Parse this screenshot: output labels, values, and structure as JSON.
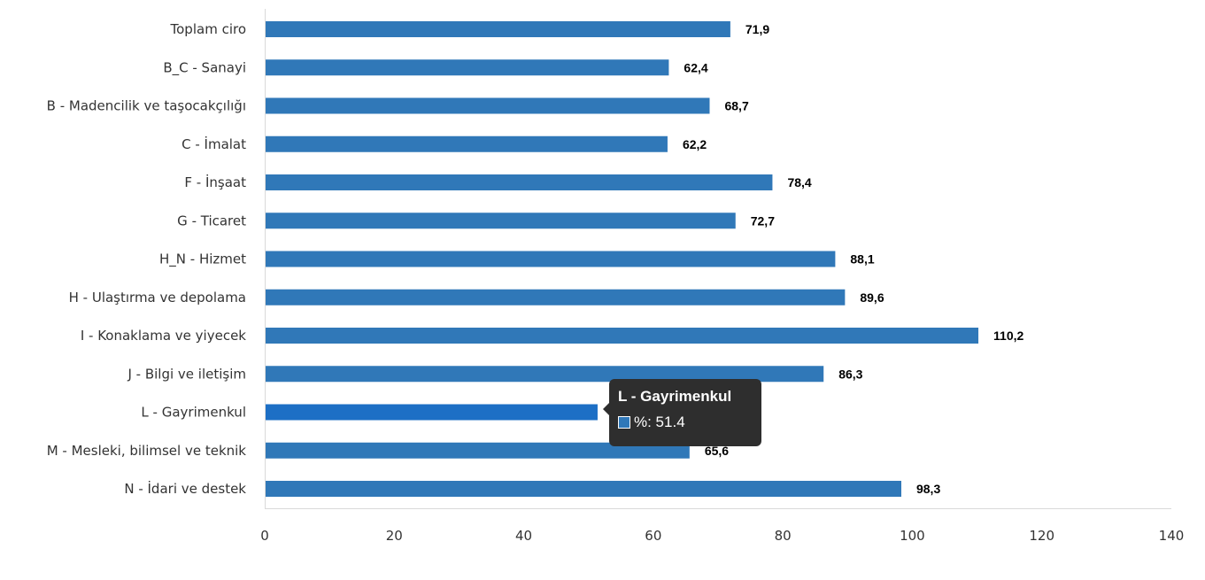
{
  "chart_data": {
    "type": "bar",
    "orientation": "horizontal",
    "categories": [
      "Toplam ciro",
      "B_C - Sanayi",
      "B - Madencilik ve taşocakçılığı",
      "C - İmalat",
      "F - İnşaat",
      "G - Ticaret",
      "H_N - Hizmet",
      "H - Ulaştırma ve depolama",
      "I - Konaklama ve yiyecek",
      "J - Bilgi ve iletişim",
      "L - Gayrimenkul",
      "M - Mesleki, bilimsel ve teknik",
      "N - İdari ve destek"
    ],
    "values": [
      71.9,
      62.4,
      68.7,
      62.2,
      78.4,
      72.7,
      88.1,
      89.6,
      110.2,
      86.3,
      51.4,
      65.6,
      98.3
    ],
    "value_labels": [
      "71,9",
      "62,4",
      "68,7",
      "62,2",
      "78,4",
      "72,7",
      "88,1",
      "89,6",
      "110,2",
      "86,3",
      "51,4",
      "65,6",
      "98,3"
    ],
    "xlim": [
      0,
      140
    ],
    "x_ticks": [
      "0",
      "20",
      "40",
      "60",
      "80",
      "100",
      "120",
      "140"
    ],
    "x_tick_values": [
      0,
      20,
      40,
      60,
      80,
      100,
      120,
      140
    ],
    "grid": false,
    "bar_color": "#3078b8",
    "highlight_color": "#1d6fc5",
    "highlight_index": 10,
    "title": "",
    "xlabel": "",
    "ylabel": ""
  },
  "tooltip": {
    "title": "L - Gayrimenkul",
    "text": "%: 51.4"
  }
}
